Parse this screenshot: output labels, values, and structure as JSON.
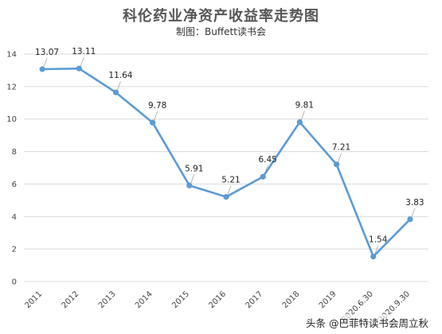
{
  "chart_data": {
    "type": "line",
    "title": "科伦药业净资产收益率走势图",
    "subtitle": "制图：Buffett读书会",
    "categories": [
      "2011",
      "2012",
      "2013",
      "2014",
      "2015",
      "2016",
      "2017",
      "2018",
      "2019",
      "2020.6.30",
      "2020.9.30"
    ],
    "values": [
      13.07,
      13.11,
      11.64,
      9.78,
      5.91,
      5.21,
      6.45,
      9.81,
      7.21,
      1.54,
      3.83
    ],
    "value_labels": [
      "13.07",
      "13.11",
      "11.64",
      "9.78",
      "5.91",
      "5.21",
      "6.45",
      "9.81",
      "7.21",
      "1.54",
      "3.83"
    ],
    "yticks": [
      "0",
      "2",
      "4",
      "6",
      "8",
      "10",
      "12",
      "14"
    ],
    "ylim": [
      0,
      14
    ],
    "grid": true,
    "legend": "none",
    "line_color": "#5b9bd5",
    "grid_color": "#d9d9d9",
    "leader_color": "#a6a6a6"
  },
  "watermark": "头条 @巴菲特读书会周立秋"
}
